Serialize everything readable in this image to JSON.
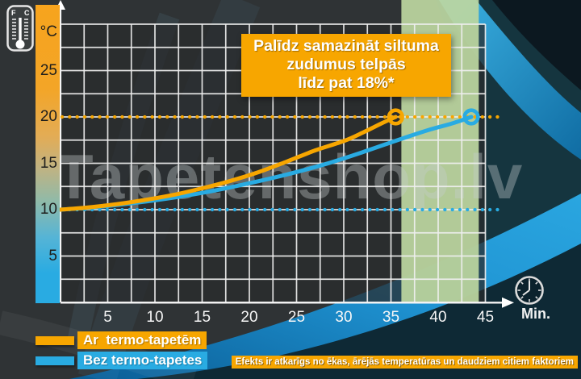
{
  "watermark": "Tapetenshop.lv",
  "title_box": {
    "lines": [
      "Palīdz samazināt siltuma",
      "zudumus telpās",
      "līdz pat 18%*"
    ]
  },
  "axis": {
    "y_unit": "°C",
    "x_unit": "Min.",
    "y_ticks": [
      "25",
      "20",
      "15",
      "10",
      "5"
    ],
    "x_ticks": [
      "5",
      "10",
      "15",
      "20",
      "25",
      "30",
      "35",
      "40",
      "45"
    ]
  },
  "legend": [
    {
      "label": "Ar  termo-tapetēm",
      "color": "#F7A600"
    },
    {
      "label": "Bez termo-tapetes",
      "color": "#29ABE2"
    }
  ],
  "footnote": "Efekts ir atkarīgs no ēkas, ārējās temperatūras un daudziem citiem faktoriem",
  "icons": {
    "thermometer": "thermometer-icon",
    "clock": "clock-icon",
    "y_axis_arrow": "arrow-up-icon",
    "x_axis_arrow": "arrow-right-icon",
    "f_label": "F",
    "c_label": "C"
  },
  "colors": {
    "orange": "#F7A600",
    "blue": "#29ABE2",
    "band_green": "#BCD6A0",
    "background": "#2F3335",
    "grid": "#EFEFEF"
  },
  "chart_data": {
    "type": "line",
    "title": "Palīdz samazināt siltuma zudumus telpās līdz pat 18%*",
    "xlabel": "Min.",
    "ylabel": "°C",
    "xlim": [
      0,
      45
    ],
    "ylim": [
      0,
      30
    ],
    "x_tick_step": 5,
    "y_tick_step": 5,
    "minor_grid_step_x": 2.5,
    "minor_grid_step_y": 2.5,
    "grid": true,
    "legend_position": "bottom-left",
    "highlight_band_x": [
      36.1,
      44.3
    ],
    "reference_lines": [
      {
        "y": 20,
        "color": "#F7A600",
        "style": "dotted"
      },
      {
        "y": 10,
        "color": "#29ABE2",
        "style": "dotted"
      }
    ],
    "series": [
      {
        "name": "Bez termo-tapetes",
        "color": "#29ABE2",
        "end_marker": "open-circle",
        "points": [
          [
            0,
            10
          ],
          [
            4,
            10.3
          ],
          [
            8,
            10.75
          ],
          [
            12,
            11.3
          ],
          [
            16,
            12.0
          ],
          [
            20,
            12.85
          ],
          [
            24,
            13.8
          ],
          [
            28,
            14.9
          ],
          [
            32,
            16.2
          ],
          [
            36,
            17.6
          ],
          [
            39,
            18.6
          ],
          [
            41.5,
            19.3
          ],
          [
            43.5,
            20
          ]
        ]
      },
      {
        "name": "Ar termo-tapetēm",
        "color": "#F7A600",
        "end_marker": "open-circle",
        "points": [
          [
            0,
            10
          ],
          [
            3,
            10.25
          ],
          [
            6,
            10.6
          ],
          [
            9,
            11.05
          ],
          [
            12,
            11.6
          ],
          [
            15,
            12.3
          ],
          [
            18,
            13.1
          ],
          [
            21,
            14.05
          ],
          [
            24,
            15.2
          ],
          [
            27,
            16.4
          ],
          [
            30,
            17.4
          ],
          [
            32,
            18.3
          ],
          [
            34,
            19.3
          ],
          [
            35.5,
            20
          ]
        ]
      }
    ]
  }
}
